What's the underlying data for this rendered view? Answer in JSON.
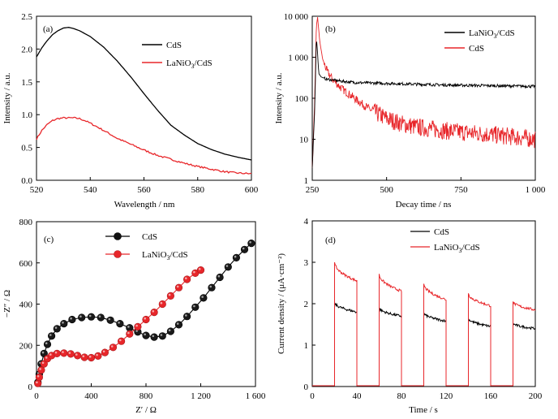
{
  "chart_data": [
    {
      "id": "a",
      "type": "line",
      "panel_label": "(a)",
      "xlabel": "Wavelength / nm",
      "ylabel": "Intensity / a.u.",
      "xlim": [
        520,
        600
      ],
      "ylim": [
        0,
        2.5
      ],
      "x_ticks": [
        520,
        540,
        560,
        580,
        600
      ],
      "x_tick_labels": [
        "520",
        "540",
        "560",
        "580",
        "600"
      ],
      "y_ticks": [
        0,
        0.5,
        1.0,
        1.5,
        2.0,
        2.5
      ],
      "y_tick_labels": [
        "0.0",
        "0.5",
        "1.0",
        "1.5",
        "2.0",
        "2.5"
      ],
      "legend_position": "top-right",
      "series": [
        {
          "name": "CdS",
          "color": "#000000",
          "x": [
            520,
            522,
            524,
            526,
            528,
            530,
            532,
            534,
            536,
            540,
            545,
            550,
            555,
            560,
            565,
            570,
            575,
            580,
            585,
            590,
            595,
            600
          ],
          "y": [
            1.88,
            2.02,
            2.13,
            2.22,
            2.28,
            2.32,
            2.33,
            2.31,
            2.28,
            2.19,
            2.03,
            1.82,
            1.58,
            1.32,
            1.07,
            0.84,
            0.69,
            0.56,
            0.47,
            0.4,
            0.35,
            0.31
          ]
        },
        {
          "name": "LaNiO3/CdS",
          "color": "#e8262a",
          "x": [
            520,
            522,
            524,
            526,
            528,
            530,
            532,
            534,
            536,
            538,
            540,
            545,
            550,
            555,
            560,
            565,
            570,
            575,
            580,
            585,
            590,
            595,
            600
          ],
          "y": [
            0.63,
            0.76,
            0.85,
            0.91,
            0.94,
            0.95,
            0.95,
            0.95,
            0.94,
            0.91,
            0.87,
            0.76,
            0.64,
            0.55,
            0.46,
            0.38,
            0.32,
            0.26,
            0.21,
            0.17,
            0.13,
            0.11,
            0.1
          ]
        }
      ]
    },
    {
      "id": "b",
      "type": "line",
      "panel_label": "(b)",
      "xlabel": "Decay time / ns",
      "ylabel": "Intensity / a.u.",
      "y_scale": "log",
      "xlim": [
        250,
        1000
      ],
      "ylim": [
        1,
        10000
      ],
      "x_ticks": [
        250,
        500,
        750,
        1000
      ],
      "x_tick_labels": [
        "250",
        "500",
        "750",
        "1 000"
      ],
      "y_ticks": [
        1,
        10,
        100,
        1000,
        10000
      ],
      "y_tick_labels": [
        "1",
        "10",
        "100",
        "1 000",
        "10 000"
      ],
      "legend_position": "top-right",
      "series": [
        {
          "name": "LaNiO3/CdS",
          "color": "#000000",
          "x": [
            250,
            258,
            264,
            268,
            272,
            280,
            300,
            350,
            400,
            500,
            600,
            700,
            800,
            900,
            1000
          ],
          "y": [
            2,
            50,
            3000,
            1200,
            400,
            330,
            290,
            260,
            240,
            230,
            220,
            210,
            205,
            200,
            195
          ]
        },
        {
          "name": "CdS",
          "color": "#e8262a",
          "x": [
            250,
            258,
            264,
            268,
            275,
            285,
            300,
            320,
            350,
            400,
            450,
            500,
            550,
            600,
            650,
            700,
            750,
            800,
            850,
            900,
            950,
            1000
          ],
          "y": [
            2,
            80,
            6000,
            9500,
            2500,
            900,
            450,
            280,
            170,
            90,
            50,
            32,
            24,
            20,
            18,
            16,
            15,
            14,
            13,
            12,
            11,
            10
          ]
        }
      ]
    },
    {
      "id": "c",
      "type": "scatter",
      "panel_label": "(c)",
      "xlabel": "Z′ / Ω",
      "ylabel": "−Z″ / Ω",
      "xlim": [
        0,
        1600
      ],
      "ylim": [
        0,
        800
      ],
      "x_ticks": [
        0,
        400,
        800,
        1200,
        1600
      ],
      "x_tick_labels": [
        "0",
        "400",
        "800",
        "1 200",
        "1 600"
      ],
      "y_ticks": [
        0,
        200,
        400,
        600,
        800
      ],
      "y_tick_labels": [
        "0",
        "200",
        "400",
        "600",
        "800"
      ],
      "legend_position": "top-left",
      "series": [
        {
          "name": "CdS",
          "color": "#000000",
          "x": [
            10,
            20,
            35,
            55,
            80,
            110,
            150,
            200,
            260,
            330,
            400,
            470,
            540,
            610,
            680,
            740,
            800,
            860,
            920,
            980,
            1040,
            1100,
            1160,
            1220,
            1280,
            1340,
            1400,
            1460,
            1520,
            1570
          ],
          "y": [
            20,
            60,
            110,
            160,
            205,
            245,
            280,
            305,
            325,
            335,
            338,
            335,
            322,
            305,
            285,
            265,
            248,
            240,
            245,
            268,
            300,
            340,
            385,
            430,
            480,
            530,
            580,
            625,
            665,
            695
          ]
        },
        {
          "name": "LaNiO3/CdS",
          "color": "#e8262a",
          "x": [
            10,
            20,
            35,
            55,
            80,
            110,
            150,
            200,
            250,
            300,
            350,
            400,
            450,
            500,
            560,
            620,
            680,
            740,
            800,
            860,
            920,
            980,
            1040,
            1100,
            1160,
            1200
          ],
          "y": [
            15,
            45,
            80,
            110,
            135,
            150,
            160,
            162,
            158,
            150,
            142,
            140,
            148,
            165,
            190,
            220,
            255,
            290,
            325,
            360,
            400,
            440,
            480,
            520,
            550,
            565
          ]
        }
      ]
    },
    {
      "id": "d",
      "type": "line",
      "panel_label": "(d)",
      "xlabel": "Time / s",
      "ylabel": "Current density / (μA·cm⁻²)",
      "xlim": [
        0,
        200
      ],
      "ylim": [
        0,
        4
      ],
      "x_ticks": [
        0,
        40,
        80,
        120,
        160,
        200
      ],
      "x_tick_labels": [
        "0",
        "40",
        "80",
        "120",
        "160",
        "200"
      ],
      "y_ticks": [
        0,
        1,
        2,
        3,
        4
      ],
      "y_tick_labels": [
        "0",
        "1",
        "2",
        "3",
        "4"
      ],
      "legend_position": "top-left",
      "light_on_intervals": [
        [
          20,
          40
        ],
        [
          60,
          80
        ],
        [
          100,
          120
        ],
        [
          140,
          160
        ],
        [
          180,
          200
        ]
      ],
      "series": [
        {
          "name": "CdS",
          "color": "#000000",
          "on_start": [
            2.03,
            1.9,
            1.78,
            1.65,
            1.53
          ],
          "on_end": [
            1.8,
            1.7,
            1.58,
            1.45,
            1.4
          ]
        },
        {
          "name": "LaNiO3/CdS",
          "color": "#e8262a",
          "on_start": [
            3.0,
            2.72,
            2.48,
            2.25,
            2.05
          ],
          "on_end": [
            2.55,
            2.3,
            2.1,
            1.95,
            1.85
          ]
        }
      ]
    }
  ]
}
